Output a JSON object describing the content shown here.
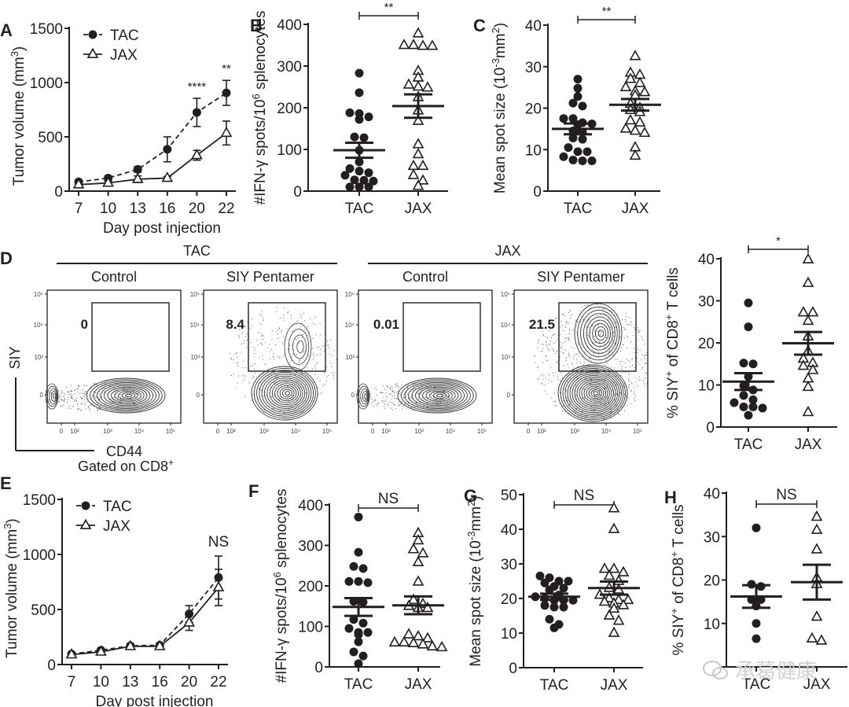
{
  "figure": {
    "watermark": "承葛健康"
  },
  "chart_data": [
    {
      "id": "A",
      "panel_letter": "A",
      "type": "line",
      "xlabel": "Day post injection",
      "ylabel": "Tumor volume (mm",
      "ylabel_sup": "3",
      "ylabel_close": ")",
      "ylim": [
        0,
        1500
      ],
      "yticks": [
        0,
        500,
        1000,
        1500
      ],
      "x": [
        7,
        10,
        13,
        16,
        20,
        22
      ],
      "xtick_labels": [
        "7",
        "10",
        "13",
        "16",
        "20",
        "22"
      ],
      "legend": "top-left",
      "series": [
        {
          "name": "TAC",
          "marker": "filled-circle",
          "line": "dashed",
          "values": [
            85,
            120,
            200,
            385,
            725,
            905
          ],
          "err": [
            15,
            20,
            25,
            115,
            130,
            115
          ]
        },
        {
          "name": "JAX",
          "marker": "open-triangle",
          "line": "solid",
          "values": [
            60,
            75,
            110,
            120,
            330,
            535
          ],
          "err": [
            10,
            15,
            30,
            15,
            45,
            110
          ]
        }
      ],
      "annotations": [
        {
          "x": 20,
          "text": "****"
        },
        {
          "x": 22,
          "text": "**"
        }
      ]
    },
    {
      "id": "B",
      "panel_letter": "B",
      "type": "scatter",
      "ylabel": "#IFN-γ spots/10",
      "ylabel_sup": "6",
      "ylabel_suffix": " splenocytes",
      "ylim": [
        0,
        400
      ],
      "yticks": [
        0,
        100,
        200,
        300,
        400
      ],
      "categories": [
        "TAC",
        "JAX"
      ],
      "significance": "**",
      "series": [
        {
          "name": "TAC",
          "marker": "filled-circle",
          "values": [
            283,
            236,
            188,
            186,
            178,
            172,
            130,
            128,
            98,
            70,
            54,
            48,
            44,
            38,
            27,
            24,
            26,
            10,
            10,
            10
          ],
          "mean": 98,
          "sem": 18
        },
        {
          "name": "JAX",
          "marker": "open-triangle",
          "values": [
            378,
            350,
            348,
            348,
            350,
            288,
            272,
            255,
            248,
            250,
            225,
            193,
            168,
            112,
            88,
            60,
            60,
            38,
            25,
            12
          ],
          "mean": 204,
          "sem": 28
        }
      ]
    },
    {
      "id": "C",
      "panel_letter": "C",
      "type": "scatter",
      "ylabel": "Mean spot size (10",
      "ylabel_sup": "-3",
      "ylabel_suffix": "mm",
      "ylabel_sup2": "2",
      "ylabel_close": ")",
      "ylim": [
        0,
        40
      ],
      "yticks": [
        0,
        10,
        20,
        30,
        40
      ],
      "categories": [
        "TAC",
        "JAX"
      ],
      "significance": "**",
      "series": [
        {
          "name": "TAC",
          "marker": "filled-circle",
          "values": [
            27,
            24.8,
            22.8,
            20.5,
            21.2,
            17.5,
            17.5,
            16.2,
            16.5,
            16,
            14.2,
            14.5,
            12.5,
            12.8,
            10.5,
            9.5,
            9.5,
            8.3,
            7.5,
            7.3,
            7.3
          ],
          "mean": 15,
          "sem": 1.3
        },
        {
          "name": "JAX",
          "marker": "open-triangle",
          "values": [
            32.5,
            28.5,
            28,
            27,
            26,
            25,
            24,
            23.8,
            23,
            21,
            20,
            19,
            19.5,
            17,
            16.5,
            15,
            14.5,
            14,
            10.5,
            8.5
          ],
          "mean": 20.8,
          "sem": 1.4
        }
      ]
    },
    {
      "id": "D-summary",
      "panel_letter": "",
      "type": "scatter",
      "ylabel": "% SIY",
      "ylabel_sup": "+",
      "ylabel_suffix": " of CD8",
      "ylabel_sup2": "+",
      "ylabel_close": " T cells",
      "ylim": [
        0,
        40
      ],
      "yticks": [
        0,
        10,
        20,
        30,
        40
      ],
      "categories": [
        "TAC",
        "JAX"
      ],
      "significance": "*",
      "series": [
        {
          "name": "TAC",
          "marker": "filled-circle",
          "values": [
            29.5,
            23.8,
            15.2,
            15,
            12,
            9.8,
            8.8,
            7.5,
            6.5,
            5.8,
            4.8,
            4.8,
            4.5,
            2.8
          ],
          "mean": 10.8,
          "sem": 2
        },
        {
          "name": "JAX",
          "marker": "open-triangle",
          "values": [
            39.8,
            34.2,
            27.2,
            27.2,
            25.2,
            21.5,
            18,
            16.2,
            15.2,
            14.5,
            13.5,
            11.5,
            9.5,
            3.5
          ],
          "mean": 19.9,
          "sem": 2.7
        }
      ]
    },
    {
      "id": "E",
      "panel_letter": "E",
      "type": "line",
      "xlabel": "Day post injection",
      "ylabel": "Tumor volume (mm",
      "ylabel_sup": "3",
      "ylabel_close": ")",
      "ylim": [
        0,
        1500
      ],
      "yticks": [
        0,
        500,
        1000,
        1500
      ],
      "x": [
        7,
        10,
        13,
        16,
        20,
        22
      ],
      "xtick_labels": [
        "7",
        "10",
        "13",
        "16",
        "20",
        "22"
      ],
      "legend": "top-left",
      "series": [
        {
          "name": "TAC",
          "marker": "filled-circle",
          "line": "dashed",
          "values": [
            95,
            130,
            170,
            175,
            460,
            790
          ],
          "err": [
            10,
            15,
            15,
            15,
            75,
            195
          ]
        },
        {
          "name": "JAX",
          "marker": "open-triangle",
          "line": "solid",
          "values": [
            90,
            115,
            165,
            165,
            380,
            700
          ],
          "err": [
            10,
            15,
            15,
            15,
            70,
            165
          ]
        }
      ],
      "annotations": [
        {
          "x": 22,
          "text": "NS"
        }
      ]
    },
    {
      "id": "F",
      "panel_letter": "F",
      "type": "scatter",
      "ylabel": "#IFN-γ spots/10",
      "ylabel_sup": "6",
      "ylabel_suffix": " splenocytes",
      "ylim": [
        0,
        400
      ],
      "yticks": [
        0,
        100,
        200,
        300,
        400
      ],
      "categories": [
        "TAC",
        "JAX"
      ],
      "significance": "NS",
      "series": [
        {
          "name": "TAC",
          "marker": "filled-circle",
          "values": [
            370,
            283,
            248,
            243,
            211,
            208,
            211,
            162,
            160,
            117,
            108,
            95,
            85,
            85,
            80,
            62,
            37,
            27,
            8
          ],
          "mean": 148,
          "sem": 22
        },
        {
          "name": "JAX",
          "marker": "open-triangle",
          "values": [
            330,
            312,
            290,
            280,
            258,
            210,
            165,
            150,
            145,
            145,
            155,
            80,
            75,
            70,
            60,
            58,
            55,
            50,
            48,
            60
          ],
          "mean": 152,
          "sem": 22
        }
      ]
    },
    {
      "id": "G",
      "panel_letter": "G",
      "type": "scatter",
      "ylabel": "Mean spot size (10",
      "ylabel_sup": "-3",
      "ylabel_suffix": "mm",
      "ylabel_sup2": "2",
      "ylabel_close": ")",
      "ylim": [
        0,
        50
      ],
      "yticks": [
        0,
        10,
        20,
        30,
        40,
        50
      ],
      "categories": [
        "TAC",
        "JAX"
      ],
      "significance": "NS",
      "series": [
        {
          "name": "TAC",
          "marker": "filled-circle",
          "values": [
            26.5,
            26,
            25,
            25,
            24.5,
            23,
            23.5,
            22.5,
            21,
            20.5,
            20,
            19.5,
            19.5,
            19.5,
            18,
            17.5,
            17.5,
            14,
            12.5,
            11.5
          ],
          "mean": 20.5,
          "sem": 0.9
        },
        {
          "name": "JAX",
          "marker": "open-triangle",
          "values": [
            46,
            40,
            28.5,
            28.5,
            27.5,
            26.5,
            25,
            23,
            22.5,
            21,
            20,
            19.5,
            19.5,
            19,
            18.5,
            18,
            17,
            15,
            13.5,
            10
          ],
          "mean": 23,
          "sem": 1.9
        }
      ]
    },
    {
      "id": "H",
      "panel_letter": "H",
      "type": "scatter",
      "ylabel": "% SIY",
      "ylabel_sup": "+",
      "ylabel_suffix": " of CD8",
      "ylabel_sup2": "+",
      "ylabel_close": " T cells",
      "ylim": [
        0,
        40
      ],
      "yticks": [
        10,
        20,
        30,
        40
      ],
      "categories": [
        "TAC",
        "JAX"
      ],
      "significance": "NS",
      "series": [
        {
          "name": "TAC",
          "marker": "filled-circle",
          "values": [
            32,
            19,
            18.5,
            15.5,
            15.5,
            14,
            10,
            6.5
          ],
          "mean": 16.2,
          "sem": 2.6
        },
        {
          "name": "JAX",
          "marker": "open-triangle",
          "values": [
            34.5,
            31.5,
            27,
            20.5,
            19,
            11.5,
            6.5,
            6
          ],
          "mean": 19.5,
          "sem": 4
        }
      ]
    }
  ],
  "flow": {
    "panel_letter": "D",
    "groups": [
      {
        "label": "TAC",
        "plots": [
          {
            "label": "Control",
            "gate_value": "0",
            "type": "control"
          },
          {
            "label": "SIY Pentamer",
            "gate_value": "8.4",
            "type": "pent-low"
          }
        ]
      },
      {
        "label": "JAX",
        "plots": [
          {
            "label": "Control",
            "gate_value": "0.01",
            "type": "control"
          },
          {
            "label": "SIY Pentamer",
            "gate_value": "21.5",
            "type": "pent-high"
          }
        ]
      }
    ],
    "y_axis_label": "SIY",
    "x_axis_label": "CD44",
    "gating_note": "Gated on CD8",
    "gating_note_sup": "+",
    "y_ticks": [
      "0",
      "10³",
      "10⁴",
      "10⁵"
    ],
    "x_ticks": [
      "0",
      "10²",
      "10³",
      "10⁴",
      "10⁵"
    ]
  }
}
